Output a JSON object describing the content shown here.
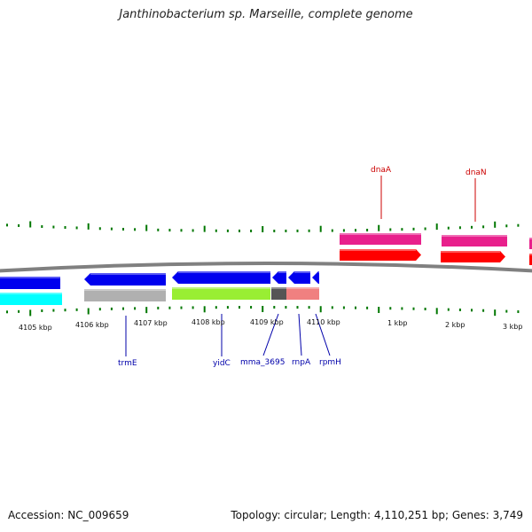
{
  "title": "Janthinobacterium sp. Marseille, complete genome",
  "footer": {
    "accession": "Accession: NC_009659",
    "summary": "Topology: circular; Length: 4,110,251 bp; Genes: 3,749"
  },
  "colors": {
    "backbone": "#808080",
    "tick": "#007700",
    "forward_cds_pink": "#e8208c",
    "forward_rna_red": "#ff0000",
    "reverse_cds_blue": "#0000ee",
    "reverse_cyan": "#00ffff",
    "reverse_gray": "#b0b0b0",
    "reverse_green": "#99ee33",
    "reverse_darkgray": "#555555",
    "reverse_salmon": "#f08080",
    "label_red": "#cc0000",
    "label_blue": "#0000aa"
  },
  "scale_labels": [
    "4105 kbp",
    "4106 kbp",
    "4107 kbp",
    "4108 kbp",
    "4109 kbp",
    "4110 kbp",
    "1 kbp",
    "2 kbp",
    "3 kbp"
  ],
  "gene_labels_forward": [
    "dnaA",
    "dnaN"
  ],
  "gene_labels_reverse": [
    "trmE",
    "yidC",
    "mma_3695",
    "rnpA",
    "rpmH"
  ]
}
